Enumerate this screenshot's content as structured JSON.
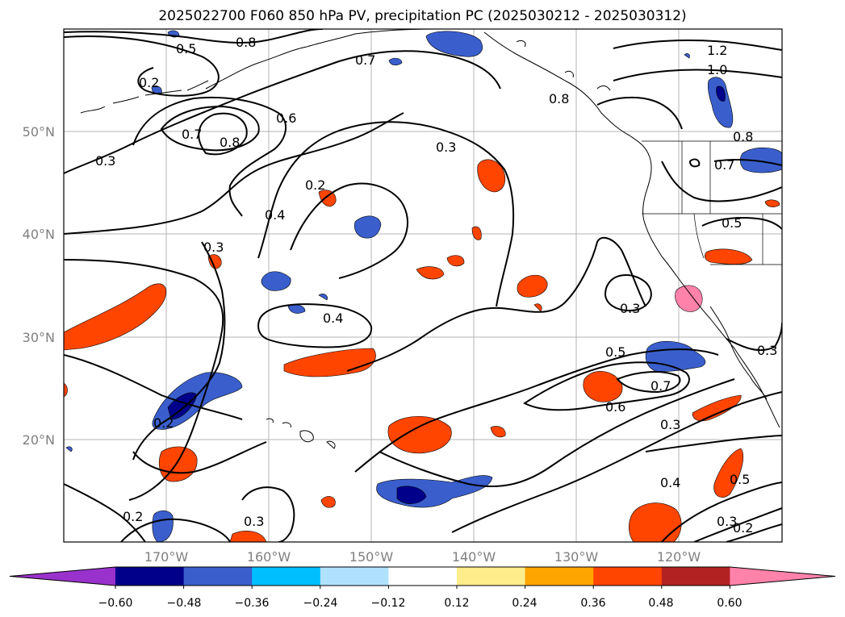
{
  "title": "2025022700 F060 850 hPa PV, precipitation PC (2025030212 - 2025030312)",
  "map": {
    "lat_labels": [
      "50°N",
      "40°N",
      "30°N",
      "20°N"
    ],
    "lon_labels": [
      "170°W",
      "160°W",
      "150°W",
      "140°W",
      "130°W",
      "120°W"
    ],
    "gridlines": true
  },
  "colorbar": {
    "ticks": [
      "−0.60",
      "−0.48",
      "−0.36",
      "−0.24",
      "−0.12",
      "0.12",
      "0.24",
      "0.36",
      "0.48",
      "0.60"
    ],
    "colors": [
      "#9932cc",
      "#00008b",
      "#3a5fcd",
      "#00bfff",
      "#b0e2ff",
      "#ffffff",
      "#ffec8b",
      "#ffa500",
      "#ff4500",
      "#b22222",
      "#ff82ab"
    ]
  },
  "contour_labels": [
    {
      "text": "0.5"
    },
    {
      "text": "0.8"
    },
    {
      "text": "0.2"
    },
    {
      "text": "0.7"
    },
    {
      "text": "0.8"
    },
    {
      "text": "0.3"
    },
    {
      "text": "0.6"
    },
    {
      "text": "0.7"
    },
    {
      "text": "0.2"
    },
    {
      "text": "0.4"
    },
    {
      "text": "0.3"
    },
    {
      "text": "0.3"
    },
    {
      "text": "0.4"
    },
    {
      "text": "0.2"
    },
    {
      "text": "0.2"
    },
    {
      "text": "0.3"
    },
    {
      "text": "1.2"
    },
    {
      "text": "1.0"
    },
    {
      "text": "0.8"
    },
    {
      "text": "0.8"
    },
    {
      "text": "0.7"
    },
    {
      "text": "0.5"
    },
    {
      "text": "0.3"
    },
    {
      "text": "0.5"
    },
    {
      "text": "0.7"
    },
    {
      "text": "0.6"
    },
    {
      "text": "0.3"
    },
    {
      "text": "0.3"
    },
    {
      "text": "0.4"
    },
    {
      "text": "0.5"
    },
    {
      "text": "0.3"
    },
    {
      "text": "0.2"
    }
  ]
}
